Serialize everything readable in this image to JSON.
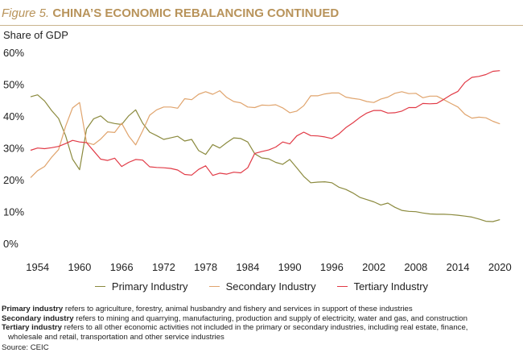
{
  "header": {
    "figure_label": "Figure 5.",
    "title": "CHINA’S ECONOMIC REBALANCING CONTINUED",
    "unit_label": "Share of GDP"
  },
  "colors": {
    "primary": "#8b8a3e",
    "secondary": "#e0a46d",
    "tertiary": "#e13a46",
    "title": "#b8935a"
  },
  "chart_data": {
    "type": "line",
    "title": "CHINA’S ECONOMIC REBALANCING CONTINUED",
    "ylabel": "Share of GDP",
    "xlabel": "",
    "xlim": [
      1953,
      2021
    ],
    "ylim": [
      0,
      60
    ],
    "x_ticks": [
      1954,
      1960,
      1966,
      1972,
      1978,
      1984,
      1990,
      1996,
      2002,
      2008,
      2014,
      2020
    ],
    "y_ticks": [
      0,
      10,
      20,
      30,
      40,
      50,
      60
    ],
    "y_tick_labels": [
      "0%",
      "10%",
      "20%",
      "30%",
      "40%",
      "50%",
      "60%"
    ],
    "grid": false,
    "legend": "bottom",
    "x": [
      1953,
      1954,
      1955,
      1956,
      1957,
      1958,
      1959,
      1960,
      1961,
      1962,
      1963,
      1964,
      1965,
      1966,
      1967,
      1968,
      1969,
      1970,
      1971,
      1972,
      1973,
      1974,
      1975,
      1976,
      1977,
      1978,
      1979,
      1980,
      1981,
      1982,
      1983,
      1984,
      1985,
      1986,
      1987,
      1988,
      1989,
      1990,
      1991,
      1992,
      1993,
      1994,
      1995,
      1996,
      1997,
      1998,
      1999,
      2000,
      2001,
      2002,
      2003,
      2004,
      2005,
      2006,
      2007,
      2008,
      2009,
      2010,
      2011,
      2012,
      2013,
      2014,
      2015,
      2016,
      2017,
      2018,
      2019,
      2020
    ],
    "series": [
      {
        "name": "Primary Industry",
        "color": "#8b8a3e",
        "values": [
          46.3,
          46.9,
          45.0,
          42.0,
          39.5,
          34.1,
          26.7,
          23.4,
          36.2,
          39.4,
          40.3,
          38.4,
          37.9,
          37.6,
          40.3,
          42.2,
          38.0,
          35.2,
          34.1,
          32.9,
          33.4,
          33.9,
          32.4,
          32.9,
          29.4,
          28.2,
          31.3,
          30.2,
          31.9,
          33.4,
          33.2,
          32.1,
          28.4,
          27.1,
          26.8,
          25.7,
          25.1,
          26.6,
          24.0,
          21.3,
          19.3,
          19.5,
          19.6,
          19.3,
          17.9,
          17.2,
          16.1,
          14.7,
          14.0,
          13.3,
          12.3,
          12.9,
          11.6,
          10.6,
          10.3,
          10.2,
          9.8,
          9.5,
          9.4,
          9.4,
          9.3,
          9.1,
          8.8,
          8.5,
          7.9,
          7.2,
          7.1,
          7.7
        ]
      },
      {
        "name": "Secondary Industry",
        "color": "#e0a46d",
        "values": [
          20.9,
          23.1,
          24.4,
          27.3,
          29.7,
          37.0,
          42.8,
          44.5,
          31.9,
          31.3,
          33.0,
          35.3,
          35.1,
          38.0,
          34.0,
          31.2,
          35.6,
          40.5,
          42.2,
          43.1,
          43.1,
          42.7,
          45.7,
          45.4,
          47.1,
          47.9,
          47.1,
          48.2,
          46.1,
          44.8,
          44.4,
          43.1,
          42.9,
          43.7,
          43.6,
          43.8,
          42.8,
          41.3,
          41.8,
          43.5,
          46.6,
          46.6,
          47.2,
          47.5,
          47.5,
          46.2,
          45.8,
          45.5,
          44.8,
          44.5,
          45.6,
          46.2,
          47.4,
          47.9,
          47.3,
          47.4,
          46.0,
          46.5,
          46.5,
          45.4,
          44.2,
          43.1,
          40.8,
          39.6,
          39.9,
          39.7,
          38.6,
          37.8
        ]
      },
      {
        "name": "Tertiary Industry",
        "color": "#e13a46",
        "values": [
          29.5,
          30.2,
          30.0,
          30.3,
          30.7,
          31.6,
          32.6,
          32.1,
          31.9,
          29.3,
          26.7,
          26.3,
          27.0,
          24.4,
          25.7,
          26.6,
          26.4,
          24.3,
          24.1,
          24.0,
          23.8,
          23.3,
          21.9,
          21.7,
          23.5,
          24.6,
          21.6,
          22.3,
          22.0,
          22.6,
          22.4,
          24.0,
          28.5,
          29.1,
          29.6,
          30.5,
          32.1,
          31.5,
          34.0,
          35.2,
          34.1,
          34.0,
          33.7,
          33.2,
          34.6,
          36.6,
          38.1,
          39.8,
          41.2,
          42.0,
          42.0,
          41.2,
          41.3,
          41.8,
          42.9,
          42.9,
          44.2,
          44.1,
          44.2,
          45.5,
          46.9,
          48.0,
          50.8,
          52.4,
          52.7,
          53.3,
          54.3,
          54.5
        ]
      }
    ]
  },
  "legend": {
    "items": [
      {
        "label": "Primary Industry"
      },
      {
        "label": "Secondary Industry"
      },
      {
        "label": "Tertiary Industry"
      }
    ]
  },
  "notes": {
    "primary": {
      "term": "Primary industry",
      "text": " refers to agriculture, forestry, animal husbandry and fishery and services in support of these industries"
    },
    "secondary": {
      "term": "Secondary industry",
      "text": " refers to mining and quarrying, manufacturing, production and supply of electricity, water and gas, and construction"
    },
    "tertiary": {
      "term": "Tertiary industry",
      "text": " refers to all other economic activities not included in the primary or secondary industries, including real estate, finance,",
      "continuation": "wholesale and retail, transportation and other service industries"
    },
    "source": "Source: CEIC"
  }
}
